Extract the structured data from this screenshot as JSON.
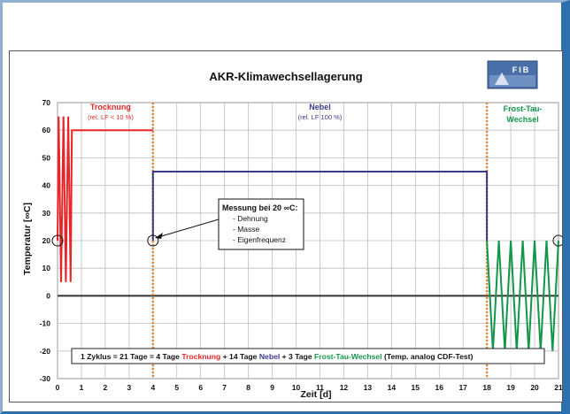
{
  "chart_data": {
    "type": "line",
    "title": "AKR-Klimawechsellagerung",
    "xlabel": "Zeit  [d]",
    "ylabel": "Temperatur [∞C]",
    "xlim": [
      0,
      21
    ],
    "ylim": [
      -30,
      70
    ],
    "xticks": [
      0,
      1,
      2,
      3,
      4,
      5,
      6,
      7,
      8,
      9,
      10,
      11,
      12,
      13,
      14,
      15,
      16,
      17,
      18,
      19,
      20,
      21
    ],
    "yticks": [
      -30,
      -20,
      -10,
      0,
      10,
      20,
      30,
      40,
      50,
      60,
      70
    ],
    "grid": true,
    "phase_boundaries": [
      4,
      18
    ],
    "series": [
      {
        "name": "Trocknung",
        "color": "#e8262a",
        "x": [
          0,
          0.05,
          0.15,
          0.25,
          0.35,
          0.45,
          0.55,
          0.6,
          4
        ],
        "y": [
          20,
          65,
          5,
          65,
          5,
          65,
          5,
          60,
          60
        ]
      },
      {
        "name": "Nebel",
        "color": "#3a3a8c",
        "x": [
          4,
          4,
          18,
          18
        ],
        "y": [
          20,
          45,
          45,
          20
        ]
      },
      {
        "name": "Frost-Tau-Wechsel",
        "color": "#11964a",
        "x": [
          18,
          18.25,
          18.5,
          18.75,
          19,
          19.25,
          19.5,
          19.75,
          20,
          20.25,
          20.5,
          20.75,
          21
        ],
        "y": [
          20,
          -20,
          20,
          -20,
          20,
          -20,
          20,
          -20,
          20,
          -20,
          20,
          -20,
          20
        ]
      }
    ],
    "phase_labels": [
      {
        "name": "Trocknung",
        "sub": "(rel. LF < 10 %)",
        "color": "#e8262a"
      },
      {
        "name": "Nebel",
        "sub": "(rel. LF 100 %)",
        "color": "#3a3a8c"
      },
      {
        "name": "Frost-Tau-",
        "name2": "Wechsel",
        "color": "#11964a"
      }
    ],
    "annotation": {
      "title": "Messung bei 20 ∞C:",
      "items": [
        "- Dehnung",
        "- Masse",
        "- Eigenfrequenz"
      ]
    },
    "measurement_points": [
      {
        "x": 0,
        "y": 20
      },
      {
        "x": 4,
        "y": 20
      },
      {
        "x": 21,
        "y": 20
      }
    ],
    "footer": {
      "p1": "1  Zyklus = 21 Tage = 4 Tage ",
      "p2": "Trocknung",
      "p3": " + 14 Tage ",
      "p4": "Nebel",
      "p5": " + 3 Tage ",
      "p6": "Frost-Tau-Wechsel",
      "p7": " (Temp. analog CDF-Test)"
    },
    "logo_text": "FIB"
  },
  "colors": {
    "trocknung": "#e8262a",
    "nebel": "#3a3a8c",
    "frost": "#11964a",
    "boundary": "#e8893a",
    "axis_zero": "#333333"
  }
}
